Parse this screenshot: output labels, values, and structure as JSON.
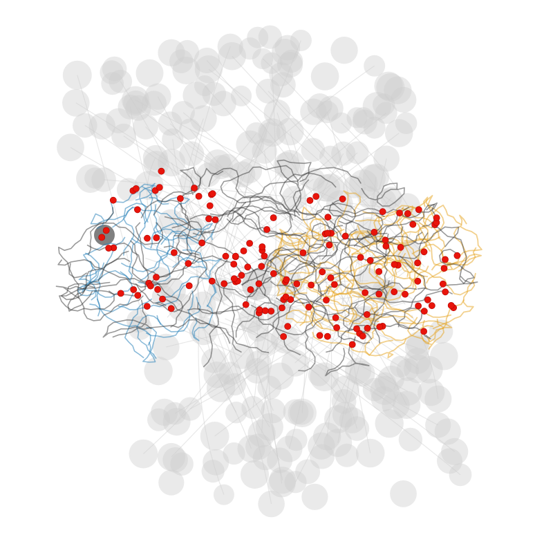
{
  "figure": {
    "background_color": "#ffffff",
    "soma_color": "#cccccc",
    "highlight_soma_color": "#555555",
    "neuron_color": "#333333",
    "group_a_color": "#2b83ba",
    "group_b_color": "#e6a21a",
    "synapse_color": "#e8150b",
    "synapse_edge_color": "#b00000"
  }
}
